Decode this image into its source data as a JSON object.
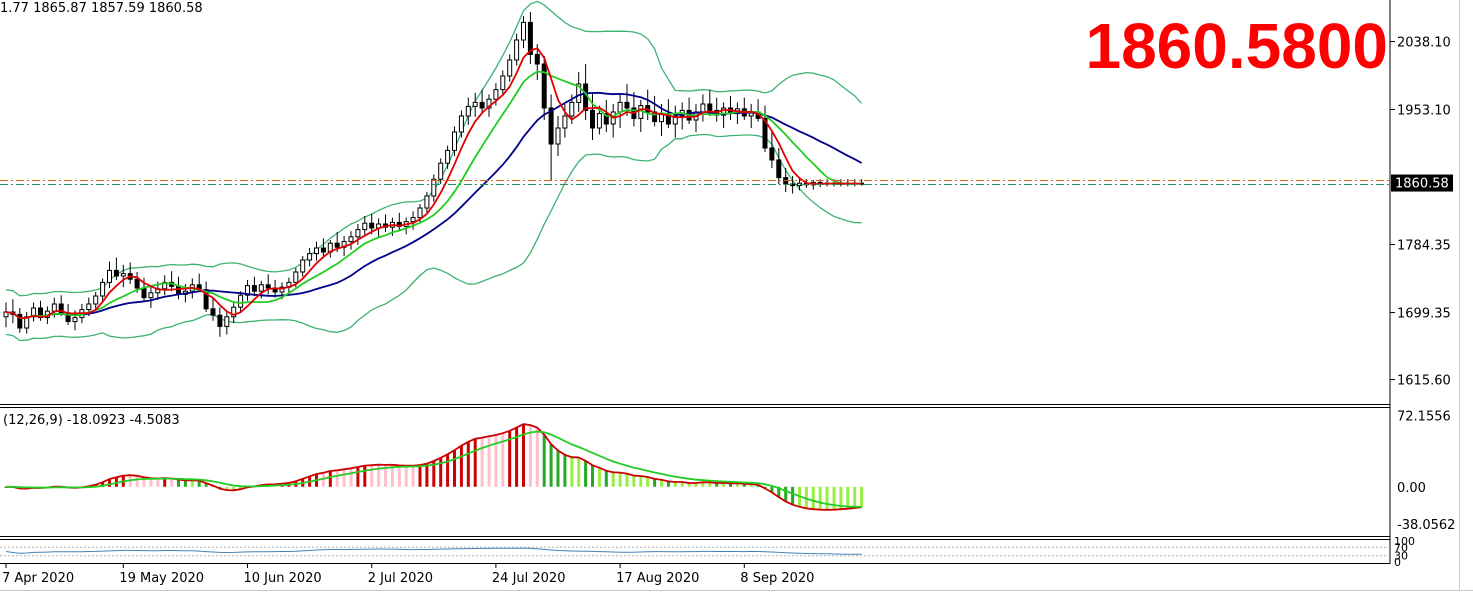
{
  "header": {
    "ohlc_text": "1.77 1865.87 1857.59 1860.58",
    "big_price": "1860.5800"
  },
  "colors": {
    "bollinger": "#3cb371",
    "ma_fast": "#e00000",
    "ma_mid": "#22cc22",
    "ma_slow": "#00008b",
    "bull_candle_fill": "#ffffff",
    "bear_candle_fill": "#000000",
    "price_line_red": "#e06020",
    "price_line_green": "#2e8b57",
    "macd_line": "#cc0000",
    "signal_line": "#22cc22",
    "hist_up_strong": "#cc0000",
    "hist_up_weak": "#ffc0cb",
    "hist_down_strong": "#22aa22",
    "hist_down_weak": "#99ee44",
    "rsi_line": "#4682b4",
    "big_price": "#ff0000"
  },
  "chart_data": [
    {
      "type": "candlestick",
      "title": "",
      "price_ticks": [
        "2038.10",
        "1953.10",
        "1784.35",
        "1699.35",
        "1615.60"
      ],
      "price_tag": "1860.58",
      "current_price": 1860.58,
      "ylim": [
        1585,
        2090
      ],
      "x_labels": [
        "7 Apr 2020",
        "19 May 2020",
        "10 Jun 2020",
        "2 Jul 2020",
        "24 Jul 2020",
        "17 Aug 2020",
        "8 Sep 2020"
      ],
      "n_bars": 125,
      "ohlc": [
        [
          1694,
          1712,
          1681,
          1700
        ],
        [
          1700,
          1716,
          1686,
          1697
        ],
        [
          1697,
          1705,
          1674,
          1680
        ],
        [
          1680,
          1700,
          1673,
          1694
        ],
        [
          1694,
          1712,
          1688,
          1705
        ],
        [
          1705,
          1714,
          1689,
          1693
        ],
        [
          1693,
          1707,
          1685,
          1701
        ],
        [
          1701,
          1718,
          1693,
          1710
        ],
        [
          1710,
          1721,
          1695,
          1699
        ],
        [
          1699,
          1710,
          1684,
          1688
        ],
        [
          1688,
          1702,
          1677,
          1693
        ],
        [
          1693,
          1710,
          1686,
          1703
        ],
        [
          1703,
          1718,
          1695,
          1710
        ],
        [
          1710,
          1725,
          1704,
          1720
        ],
        [
          1720,
          1742,
          1713,
          1737
        ],
        [
          1737,
          1763,
          1730,
          1752
        ],
        [
          1752,
          1768,
          1740,
          1745
        ],
        [
          1745,
          1759,
          1731,
          1748
        ],
        [
          1748,
          1762,
          1735,
          1741
        ],
        [
          1741,
          1750,
          1724,
          1730
        ],
        [
          1730,
          1743,
          1714,
          1718
        ],
        [
          1718,
          1732,
          1705,
          1724
        ],
        [
          1724,
          1738,
          1715,
          1729
        ],
        [
          1729,
          1746,
          1721,
          1737
        ],
        [
          1737,
          1751,
          1726,
          1732
        ],
        [
          1732,
          1744,
          1716,
          1722
        ],
        [
          1722,
          1735,
          1712,
          1726
        ],
        [
          1726,
          1742,
          1717,
          1734
        ],
        [
          1734,
          1748,
          1725,
          1728
        ],
        [
          1728,
          1738,
          1700,
          1704
        ],
        [
          1704,
          1718,
          1689,
          1696
        ],
        [
          1696,
          1706,
          1669,
          1682
        ],
        [
          1682,
          1700,
          1672,
          1694
        ],
        [
          1694,
          1712,
          1686,
          1706
        ],
        [
          1706,
          1726,
          1700,
          1721
        ],
        [
          1721,
          1740,
          1714,
          1733
        ],
        [
          1733,
          1744,
          1720,
          1726
        ],
        [
          1726,
          1739,
          1717,
          1734
        ],
        [
          1734,
          1747,
          1722,
          1730
        ],
        [
          1730,
          1740,
          1718,
          1725
        ],
        [
          1725,
          1737,
          1716,
          1731
        ],
        [
          1731,
          1743,
          1722,
          1737
        ],
        [
          1737,
          1755,
          1731,
          1750
        ],
        [
          1750,
          1770,
          1744,
          1765
        ],
        [
          1765,
          1780,
          1757,
          1773
        ],
        [
          1773,
          1788,
          1764,
          1780
        ],
        [
          1780,
          1792,
          1769,
          1775
        ],
        [
          1775,
          1790,
          1768,
          1786
        ],
        [
          1786,
          1800,
          1775,
          1781
        ],
        [
          1781,
          1795,
          1770,
          1788
        ],
        [
          1788,
          1801,
          1778,
          1794
        ],
        [
          1794,
          1810,
          1784,
          1803
        ],
        [
          1803,
          1820,
          1795,
          1811
        ],
        [
          1811,
          1823,
          1797,
          1805
        ],
        [
          1805,
          1817,
          1794,
          1810
        ],
        [
          1810,
          1822,
          1800,
          1806
        ],
        [
          1806,
          1818,
          1795,
          1812
        ],
        [
          1812,
          1824,
          1801,
          1807
        ],
        [
          1807,
          1818,
          1797,
          1813
        ],
        [
          1813,
          1826,
          1803,
          1818
        ],
        [
          1818,
          1835,
          1811,
          1830
        ],
        [
          1830,
          1850,
          1824,
          1845
        ],
        [
          1845,
          1872,
          1838,
          1866
        ],
        [
          1866,
          1892,
          1860,
          1886
        ],
        [
          1886,
          1908,
          1879,
          1902
        ],
        [
          1902,
          1932,
          1895,
          1925
        ],
        [
          1925,
          1952,
          1918,
          1945
        ],
        [
          1945,
          1968,
          1934,
          1957
        ],
        [
          1957,
          1974,
          1944,
          1962
        ],
        [
          1962,
          1978,
          1949,
          1955
        ],
        [
          1955,
          1972,
          1944,
          1966
        ],
        [
          1966,
          1986,
          1958,
          1978
        ],
        [
          1978,
          2002,
          1971,
          1995
        ],
        [
          1995,
          2022,
          1988,
          2015
        ],
        [
          2015,
          2048,
          2008,
          2040
        ],
        [
          2040,
          2070,
          2030,
          2062
        ],
        [
          2062,
          2075,
          2010,
          2022
        ],
        [
          2022,
          2035,
          1990,
          2010
        ],
        [
          2010,
          2020,
          1940,
          1955
        ],
        [
          1955,
          1972,
          1865,
          1910
        ],
        [
          1910,
          1945,
          1895,
          1930
        ],
        [
          1930,
          1960,
          1918,
          1945
        ],
        [
          1945,
          1972,
          1935,
          1962
        ],
        [
          1962,
          2000,
          1950,
          1985
        ],
        [
          1985,
          2010,
          1940,
          1952
        ],
        [
          1952,
          1975,
          1915,
          1930
        ],
        [
          1930,
          1958,
          1922,
          1948
        ],
        [
          1948,
          1965,
          1925,
          1935
        ],
        [
          1935,
          1960,
          1918,
          1950
        ],
        [
          1950,
          1972,
          1930,
          1962
        ],
        [
          1962,
          1985,
          1945,
          1955
        ],
        [
          1955,
          1975,
          1932,
          1942
        ],
        [
          1942,
          1965,
          1925,
          1958
        ],
        [
          1958,
          1978,
          1940,
          1950
        ],
        [
          1950,
          1970,
          1932,
          1938
        ],
        [
          1938,
          1960,
          1920,
          1948
        ],
        [
          1948,
          1966,
          1930,
          1935
        ],
        [
          1935,
          1958,
          1918,
          1945
        ],
        [
          1945,
          1962,
          1928,
          1952
        ],
        [
          1952,
          1968,
          1935,
          1940
        ],
        [
          1940,
          1960,
          1925,
          1950
        ],
        [
          1950,
          1972,
          1938,
          1960
        ],
        [
          1960,
          1978,
          1945,
          1952
        ],
        [
          1952,
          1968,
          1938,
          1946
        ],
        [
          1946,
          1962,
          1930,
          1955
        ],
        [
          1955,
          1970,
          1940,
          1948
        ],
        [
          1948,
          1962,
          1935,
          1954
        ],
        [
          1954,
          1968,
          1940,
          1945
        ],
        [
          1945,
          1960,
          1930,
          1950
        ],
        [
          1950,
          1966,
          1938,
          1942
        ],
        [
          1942,
          1958,
          1900,
          1905
        ],
        [
          1905,
          1925,
          1880,
          1890
        ],
        [
          1890,
          1905,
          1860,
          1868
        ],
        [
          1868,
          1880,
          1850,
          1860
        ],
        [
          1860,
          1870,
          1848,
          1858
        ],
        [
          1858,
          1866,
          1852,
          1861
        ],
        [
          1861,
          1866,
          1855,
          1859
        ],
        [
          1859,
          1865,
          1853,
          1862
        ],
        [
          1862,
          1866,
          1856,
          1860
        ],
        [
          1860,
          1866,
          1857,
          1861
        ],
        [
          1861,
          1866,
          1857,
          1860
        ],
        [
          1860,
          1866,
          1857,
          1861
        ],
        [
          1861,
          1866,
          1857,
          1860
        ],
        [
          1860,
          1866,
          1857,
          1861
        ],
        [
          1861,
          1866,
          1858,
          1860.58
        ]
      ],
      "ma_periods": {
        "fast": 5,
        "mid": 10,
        "slow": 20
      },
      "bollinger": {
        "period": 20,
        "deviation": 2
      }
    },
    {
      "type": "macd",
      "label": "(12,26,9) -18.0923 -4.5083",
      "ticks": [
        "72.1556",
        "0.00",
        "-38.0562"
      ],
      "ylim": [
        -50,
        80
      ]
    },
    {
      "type": "line",
      "ticks": [
        "100",
        "70",
        "30",
        "0"
      ],
      "ylim": [
        0,
        100
      ],
      "levels": [
        70,
        30
      ]
    }
  ]
}
